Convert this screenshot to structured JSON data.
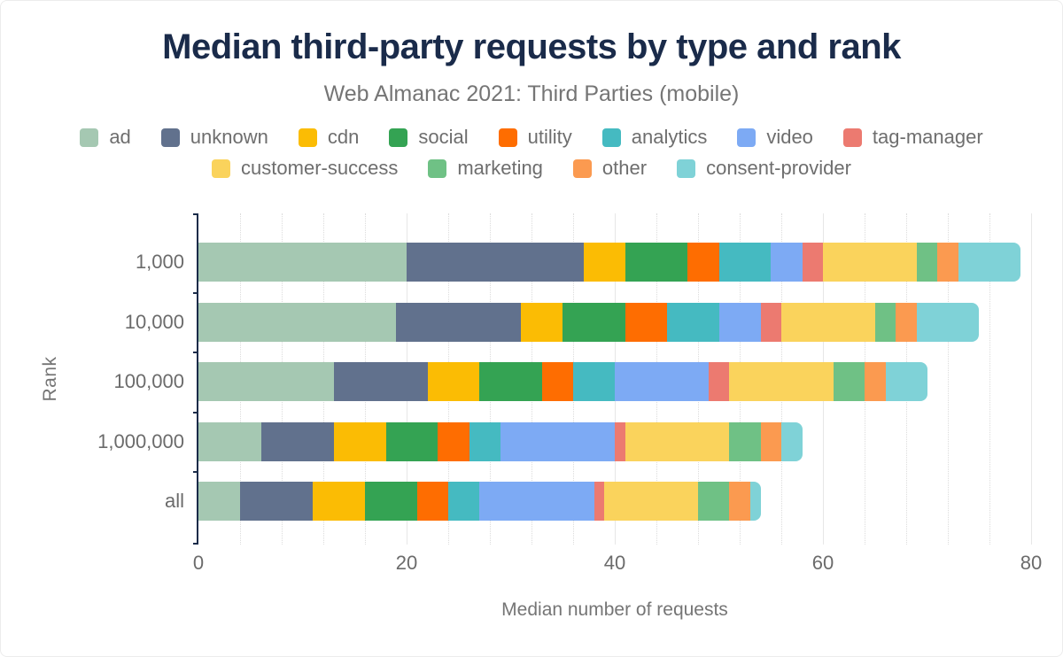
{
  "chart_data": {
    "type": "bar",
    "orientation": "horizontal-stacked",
    "title": "Median third-party requests by type and rank",
    "subtitle": "Web Almanac 2021: Third Parties (mobile)",
    "xlabel": "Median number of requests",
    "ylabel": "Rank",
    "categories": [
      "1,000",
      "10,000",
      "100,000",
      "1,000,000",
      "all"
    ],
    "x_ticks": [
      "0",
      "20",
      "40",
      "60",
      "80"
    ],
    "xlim": [
      0,
      80
    ],
    "grid": "vertical, minor dotted every 4, major solid every 20",
    "legend_position": "top, two centered rows",
    "legend_rows": [
      8,
      4
    ],
    "series": [
      {
        "name": "ad",
        "color": "#a5c8b2",
        "values": [
          20,
          19,
          13,
          6,
          4
        ]
      },
      {
        "name": "unknown",
        "color": "#61718d",
        "values": [
          17,
          12,
          9,
          7,
          7
        ]
      },
      {
        "name": "cdn",
        "color": "#fbbc04",
        "values": [
          4,
          4,
          5,
          5,
          5
        ]
      },
      {
        "name": "social",
        "color": "#34a353",
        "values": [
          6,
          6,
          6,
          5,
          5
        ]
      },
      {
        "name": "utility",
        "color": "#fe6d01",
        "values": [
          3,
          4,
          3,
          3,
          3
        ]
      },
      {
        "name": "analytics",
        "color": "#45bac1",
        "values": [
          5,
          5,
          4,
          3,
          3
        ]
      },
      {
        "name": "video",
        "color": "#7daaf4",
        "values": [
          3,
          4,
          9,
          11,
          11
        ]
      },
      {
        "name": "tag-manager",
        "color": "#ec7a70",
        "values": [
          2,
          2,
          2,
          1,
          1
        ]
      },
      {
        "name": "customer-success",
        "color": "#fad35c",
        "values": [
          9,
          9,
          10,
          10,
          9
        ]
      },
      {
        "name": "marketing",
        "color": "#6fc185",
        "values": [
          2,
          2,
          3,
          3,
          3
        ]
      },
      {
        "name": "other",
        "color": "#fb9a50",
        "values": [
          2,
          2,
          2,
          2,
          2
        ]
      },
      {
        "name": "consent-provider",
        "color": "#7fd2d7",
        "values": [
          6,
          6,
          4,
          2,
          1
        ]
      }
    ],
    "totals": [
      79,
      75,
      70,
      58,
      54
    ],
    "axis_color": "#1a2b49"
  }
}
